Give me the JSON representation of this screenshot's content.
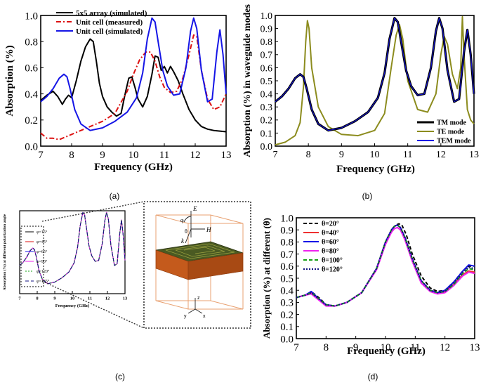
{
  "panel_labels": [
    "(a)",
    "(b)",
    "(c)",
    "(d)"
  ],
  "inset": {
    "axis_labels": [
      "E",
      "H",
      "k",
      "φ",
      "θ",
      "z",
      "y",
      "x"
    ]
  },
  "colors": {
    "black": "#000000",
    "red": "#dd1111",
    "blue": "#1515e6",
    "olive": "#8c8c1e",
    "magenta": "#ee22ee",
    "green": "#14a014",
    "navy": "#101080",
    "orange": "#c8651e"
  },
  "chart_data": [
    {
      "id": "a",
      "type": "line",
      "title": "",
      "xlabel": "Frequency (GHz)",
      "ylabel": "Absorption (%)",
      "xlim": [
        7,
        13
      ],
      "ylim": [
        0,
        1
      ],
      "xticks": [
        7,
        8,
        9,
        10,
        11,
        12,
        13
      ],
      "yticks": [
        0.0,
        0.2,
        0.4,
        0.6,
        0.8,
        1.0
      ],
      "ytick_labels": [
        "0.0",
        "0.2",
        "0.4",
        "0.6",
        "0.8",
        "1.0"
      ],
      "legend": "top-left",
      "series": [
        {
          "name": "5x5 array (simulated)",
          "color": "#000000",
          "dash": "",
          "x": [
            7.0,
            7.2,
            7.4,
            7.55,
            7.7,
            7.8,
            7.9,
            8.0,
            8.15,
            8.3,
            8.45,
            8.6,
            8.7,
            8.8,
            8.9,
            9.0,
            9.15,
            9.3,
            9.45,
            9.6,
            9.75,
            9.85,
            9.95,
            10.05,
            10.15,
            10.3,
            10.45,
            10.6,
            10.7,
            10.8,
            10.9,
            11.0,
            11.1,
            11.2,
            11.3,
            11.45,
            11.6,
            11.8,
            12.0,
            12.2,
            12.4,
            12.6,
            12.8,
            13.0
          ],
          "y": [
            0.35,
            0.39,
            0.42,
            0.38,
            0.32,
            0.36,
            0.39,
            0.37,
            0.5,
            0.65,
            0.76,
            0.82,
            0.8,
            0.65,
            0.48,
            0.38,
            0.3,
            0.26,
            0.23,
            0.25,
            0.42,
            0.52,
            0.53,
            0.45,
            0.36,
            0.3,
            0.38,
            0.55,
            0.69,
            0.68,
            0.58,
            0.61,
            0.56,
            0.61,
            0.57,
            0.5,
            0.4,
            0.28,
            0.2,
            0.15,
            0.13,
            0.12,
            0.115,
            0.11
          ]
        },
        {
          "name": "Unit cell (measured)",
          "color": "#dd1111",
          "dash": "7,3,2,3",
          "x": [
            7.0,
            7.1,
            7.2,
            7.4,
            7.6,
            7.8,
            8.0,
            8.3,
            8.6,
            9.0,
            9.4,
            9.8,
            10.0,
            10.2,
            10.4,
            10.55,
            10.7,
            10.85,
            11.0,
            11.2,
            11.4,
            11.6,
            11.8,
            11.95,
            12.05,
            12.2,
            12.4,
            12.6,
            12.8,
            13.0
          ],
          "y": [
            0.1,
            0.08,
            0.06,
            0.06,
            0.05,
            0.07,
            0.09,
            0.12,
            0.15,
            0.19,
            0.25,
            0.42,
            0.55,
            0.66,
            0.72,
            0.72,
            0.65,
            0.53,
            0.45,
            0.41,
            0.42,
            0.52,
            0.7,
            0.85,
            0.84,
            0.58,
            0.36,
            0.28,
            0.3,
            0.4
          ]
        },
        {
          "name": "Unit cell (simulated)",
          "color": "#1515e6",
          "dash": "",
          "x": [
            7.0,
            7.2,
            7.4,
            7.6,
            7.75,
            7.85,
            7.95,
            8.1,
            8.3,
            8.6,
            9.0,
            9.4,
            9.8,
            10.1,
            10.3,
            10.45,
            10.6,
            10.7,
            10.8,
            10.95,
            11.1,
            11.3,
            11.5,
            11.7,
            11.85,
            11.95,
            12.05,
            12.2,
            12.4,
            12.55,
            12.7,
            12.8,
            12.9,
            13.0
          ],
          "y": [
            0.34,
            0.38,
            0.44,
            0.52,
            0.55,
            0.53,
            0.44,
            0.28,
            0.17,
            0.12,
            0.14,
            0.19,
            0.26,
            0.37,
            0.56,
            0.82,
            0.98,
            0.95,
            0.8,
            0.58,
            0.46,
            0.39,
            0.4,
            0.6,
            0.88,
            0.98,
            0.9,
            0.58,
            0.34,
            0.36,
            0.72,
            0.89,
            0.7,
            0.4
          ]
        }
      ]
    },
    {
      "id": "b",
      "type": "line",
      "title": "",
      "xlabel": "Frequency (GHz)",
      "ylabel": "Absorption (%) in waveguide modes",
      "xlim": [
        7,
        13
      ],
      "ylim": [
        0,
        1
      ],
      "xticks": [
        7,
        8,
        9,
        10,
        11,
        12,
        13
      ],
      "yticks": [
        0.0,
        0.1,
        0.2,
        0.3,
        0.4,
        0.5,
        0.6,
        0.7,
        0.8,
        0.9,
        1.0
      ],
      "ytick_labels": [
        "0.0",
        "0.1",
        "0.2",
        "0.3",
        "0.4",
        "0.5",
        "0.6",
        "0.7",
        "0.8",
        "0.9",
        "1.0"
      ],
      "legend": "bottom-right",
      "series": [
        {
          "name": "TE mode",
          "color": "#8c8c1e",
          "dash": "",
          "x": [
            7.0,
            7.3,
            7.6,
            7.75,
            7.85,
            7.92,
            7.97,
            8.02,
            8.1,
            8.3,
            8.6,
            9.0,
            9.5,
            10.0,
            10.3,
            10.5,
            10.65,
            10.75,
            10.85,
            11.0,
            11.3,
            11.6,
            11.85,
            12.0,
            12.1,
            12.2,
            12.35,
            12.5,
            12.6,
            12.65,
            12.7,
            12.8,
            12.9,
            13.0
          ],
          "y": [
            0.01,
            0.03,
            0.08,
            0.18,
            0.45,
            0.8,
            0.96,
            0.9,
            0.6,
            0.3,
            0.15,
            0.09,
            0.08,
            0.12,
            0.25,
            0.6,
            0.85,
            0.93,
            0.82,
            0.5,
            0.28,
            0.26,
            0.4,
            0.7,
            0.84,
            0.78,
            0.55,
            0.44,
            0.6,
            0.99,
            0.7,
            0.28,
            0.2,
            0.17
          ]
        },
        {
          "name": "TM mode",
          "color": "#000000",
          "dash": "",
          "x": [
            7.0,
            7.2,
            7.4,
            7.6,
            7.75,
            7.85,
            7.95,
            8.1,
            8.3,
            8.6,
            9.0,
            9.4,
            9.8,
            10.1,
            10.3,
            10.45,
            10.6,
            10.7,
            10.8,
            10.95,
            11.1,
            11.3,
            11.5,
            11.7,
            11.85,
            11.95,
            12.05,
            12.2,
            12.4,
            12.55,
            12.7,
            12.8,
            12.9,
            13.0
          ],
          "y": [
            0.34,
            0.38,
            0.44,
            0.52,
            0.55,
            0.53,
            0.44,
            0.28,
            0.17,
            0.12,
            0.14,
            0.19,
            0.26,
            0.37,
            0.56,
            0.82,
            0.98,
            0.95,
            0.8,
            0.58,
            0.46,
            0.39,
            0.4,
            0.6,
            0.88,
            0.98,
            0.9,
            0.58,
            0.34,
            0.36,
            0.72,
            0.89,
            0.7,
            0.4
          ]
        },
        {
          "name": "TEM mode",
          "color": "#1515e6",
          "dash": "",
          "x": [
            7.0,
            7.2,
            7.4,
            7.6,
            7.75,
            7.85,
            7.95,
            8.1,
            8.3,
            8.6,
            9.0,
            9.4,
            9.8,
            10.1,
            10.3,
            10.45,
            10.6,
            10.7,
            10.8,
            10.95,
            11.1,
            11.3,
            11.5,
            11.7,
            11.85,
            11.95,
            12.05,
            12.2,
            12.4,
            12.55,
            12.7,
            12.8,
            12.9,
            13.0
          ],
          "y": [
            0.34,
            0.38,
            0.44,
            0.52,
            0.55,
            0.53,
            0.44,
            0.28,
            0.17,
            0.12,
            0.14,
            0.19,
            0.26,
            0.37,
            0.56,
            0.82,
            0.98,
            0.95,
            0.8,
            0.58,
            0.46,
            0.39,
            0.4,
            0.6,
            0.88,
            0.98,
            0.9,
            0.58,
            0.34,
            0.36,
            0.72,
            0.89,
            0.7,
            0.4
          ]
        }
      ]
    },
    {
      "id": "c",
      "type": "line",
      "title": "",
      "xlabel": "Frequency (GHz)",
      "ylabel": "Absorption (%) at different polarization angle",
      "xlim": [
        7,
        13
      ],
      "ylim": [
        0,
        1
      ],
      "xticks": [
        7,
        8,
        9,
        10,
        11,
        12,
        13
      ],
      "yticks": [],
      "ytick_labels": [],
      "legend": "left",
      "series": [
        {
          "name": "φ=15°",
          "color": "#000000",
          "dash": "",
          "shared": "c_curve"
        },
        {
          "name": "φ=45°",
          "color": "#dd1111",
          "dash": "",
          "shared": "c_curve"
        },
        {
          "name": "φ=65°",
          "color": "#1515e6",
          "dash": "",
          "shared": "c_curve"
        },
        {
          "name": "φ=90°",
          "color": "#ee22ee",
          "dash": "",
          "shared": "c_curve"
        },
        {
          "name": "φ=120°",
          "color": "#14a014",
          "dash": "2,2",
          "shared": "c_curve"
        },
        {
          "name": "φ=135°",
          "color": "#101080",
          "dash": "5,3",
          "shared": "c_curve"
        }
      ],
      "c_curve": {
        "x": [
          7.0,
          7.2,
          7.4,
          7.6,
          7.75,
          7.85,
          7.95,
          8.1,
          8.3,
          8.6,
          9.0,
          9.4,
          9.8,
          10.1,
          10.3,
          10.45,
          10.6,
          10.7,
          10.8,
          10.95,
          11.1,
          11.3,
          11.5,
          11.7,
          11.85,
          11.95,
          12.05,
          12.2,
          12.4,
          12.55,
          12.7,
          12.8,
          12.9,
          13.0
        ],
        "y": [
          0.34,
          0.38,
          0.44,
          0.52,
          0.55,
          0.53,
          0.44,
          0.28,
          0.17,
          0.12,
          0.14,
          0.19,
          0.26,
          0.37,
          0.56,
          0.82,
          0.98,
          0.95,
          0.8,
          0.58,
          0.46,
          0.39,
          0.4,
          0.6,
          0.88,
          0.98,
          0.9,
          0.58,
          0.34,
          0.36,
          0.72,
          0.89,
          0.7,
          0.4
        ]
      }
    },
    {
      "id": "d",
      "type": "line",
      "title": "",
      "xlabel": "Frequency (GHz)",
      "ylabel": "Absorption (%) at different (θ)",
      "xlim": [
        7,
        13
      ],
      "ylim": [
        0,
        1
      ],
      "xticks": [
        7,
        8,
        9,
        10,
        11,
        12,
        13
      ],
      "yticks": [
        0.0,
        0.1,
        0.2,
        0.3,
        0.4,
        0.5,
        0.6,
        0.7,
        0.8,
        0.9,
        1.0
      ],
      "ytick_labels": [
        "0.0",
        "0.1",
        "0.2",
        "0.3",
        "0.4",
        "0.5",
        "0.6",
        "0.7",
        "0.8",
        "0.9",
        "1.0"
      ],
      "legend": "top-left",
      "series": [
        {
          "name": "θ=20°",
          "color": "#000000",
          "dash": "5,3",
          "x": [
            7.0,
            7.3,
            7.55,
            7.8,
            8.0,
            8.3,
            8.7,
            9.2,
            9.7,
            10.0,
            10.2,
            10.35,
            10.45,
            10.55,
            10.7,
            10.9,
            11.2,
            11.5,
            11.75,
            12.0,
            12.3,
            12.6,
            12.8,
            13.0
          ],
          "y": [
            0.34,
            0.36,
            0.38,
            0.33,
            0.28,
            0.27,
            0.3,
            0.38,
            0.58,
            0.8,
            0.9,
            0.94,
            0.95,
            0.94,
            0.86,
            0.7,
            0.52,
            0.42,
            0.39,
            0.4,
            0.47,
            0.56,
            0.6,
            0.6
          ]
        },
        {
          "name": "θ=40°",
          "color": "#ee3030",
          "dash": "",
          "x": [
            7.0,
            7.3,
            7.5,
            7.75,
            8.0,
            8.3,
            8.7,
            9.2,
            9.7,
            10.0,
            10.2,
            10.3,
            10.4,
            10.5,
            10.65,
            10.9,
            11.2,
            11.5,
            11.75,
            12.0,
            12.3,
            12.6,
            12.8,
            13.0
          ],
          "y": [
            0.34,
            0.36,
            0.38,
            0.33,
            0.28,
            0.27,
            0.3,
            0.38,
            0.58,
            0.8,
            0.9,
            0.93,
            0.94,
            0.92,
            0.84,
            0.66,
            0.48,
            0.4,
            0.38,
            0.39,
            0.45,
            0.53,
            0.56,
            0.55
          ]
        },
        {
          "name": "θ=60°",
          "color": "#1515e6",
          "dash": "",
          "x": [
            7.0,
            7.3,
            7.5,
            7.75,
            8.0,
            8.3,
            8.7,
            9.2,
            9.7,
            10.0,
            10.2,
            10.3,
            10.4,
            10.5,
            10.65,
            10.9,
            11.2,
            11.5,
            11.75,
            12.0,
            12.3,
            12.6,
            12.8,
            13.0
          ],
          "y": [
            0.34,
            0.36,
            0.39,
            0.33,
            0.28,
            0.27,
            0.3,
            0.38,
            0.58,
            0.8,
            0.9,
            0.93,
            0.94,
            0.92,
            0.84,
            0.66,
            0.48,
            0.4,
            0.38,
            0.4,
            0.47,
            0.56,
            0.61,
            0.6
          ]
        },
        {
          "name": "θ=80°",
          "color": "#ee22ee",
          "dash": "",
          "x": [
            7.0,
            7.3,
            7.5,
            7.75,
            8.0,
            8.3,
            8.7,
            9.2,
            9.7,
            10.0,
            10.2,
            10.3,
            10.4,
            10.5,
            10.65,
            10.9,
            11.2,
            11.5,
            11.75,
            12.0,
            12.3,
            12.6,
            12.8,
            13.0
          ],
          "y": [
            0.34,
            0.36,
            0.37,
            0.32,
            0.27,
            0.27,
            0.3,
            0.38,
            0.57,
            0.78,
            0.88,
            0.91,
            0.92,
            0.9,
            0.82,
            0.64,
            0.46,
            0.39,
            0.37,
            0.38,
            0.44,
            0.52,
            0.55,
            0.54
          ]
        },
        {
          "name": "θ=100°",
          "color": "#14a014",
          "dash": "5,3",
          "x": [
            7.0,
            7.3,
            7.5,
            7.75,
            8.0,
            8.3,
            8.7,
            9.2,
            9.7,
            10.0,
            10.2,
            10.3,
            10.4,
            10.5,
            10.65,
            10.9,
            11.2,
            11.5,
            11.75,
            12.0,
            12.3,
            12.6,
            12.8,
            13.0
          ],
          "y": [
            0.34,
            0.36,
            0.38,
            0.33,
            0.28,
            0.27,
            0.3,
            0.38,
            0.58,
            0.8,
            0.9,
            0.93,
            0.94,
            0.92,
            0.84,
            0.66,
            0.48,
            0.4,
            0.38,
            0.39,
            0.45,
            0.54,
            0.58,
            0.57
          ]
        },
        {
          "name": "θ=120°",
          "color": "#101080",
          "dash": "2,2",
          "x": [
            7.0,
            7.3,
            7.5,
            7.75,
            8.0,
            8.3,
            8.7,
            9.2,
            9.7,
            10.0,
            10.2,
            10.3,
            10.4,
            10.5,
            10.65,
            10.9,
            11.2,
            11.5,
            11.75,
            12.0,
            12.3,
            12.6,
            12.8,
            13.0
          ],
          "y": [
            0.34,
            0.36,
            0.38,
            0.33,
            0.28,
            0.27,
            0.3,
            0.38,
            0.58,
            0.8,
            0.9,
            0.93,
            0.94,
            0.92,
            0.84,
            0.66,
            0.48,
            0.4,
            0.38,
            0.39,
            0.46,
            0.55,
            0.59,
            0.58
          ]
        }
      ]
    }
  ]
}
